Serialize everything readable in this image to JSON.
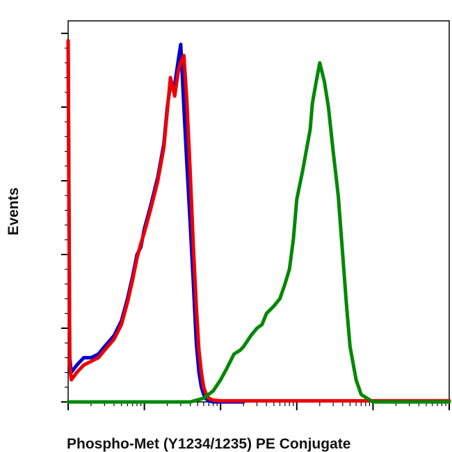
{
  "chart_data": {
    "type": "line",
    "title": "",
    "xlabel": "Phospho-Met (Y1234/1235) PE Conjugate",
    "ylabel": "Events",
    "x_scale": "log",
    "xlim": [
      1,
      100000
    ],
    "ylim": [
      0,
      100
    ],
    "y_tick_count": 5,
    "tick_labels_shown": false,
    "grid": false,
    "legend": "none",
    "series": [
      {
        "color": "#0000cc",
        "x": [
          1,
          1.05,
          1.1,
          1.3,
          1.6,
          2,
          2.5,
          3,
          4,
          5,
          6,
          7,
          8,
          9,
          10,
          12,
          15,
          18,
          20,
          22,
          25,
          28,
          30,
          33,
          36,
          40,
          44,
          48,
          52,
          56,
          60,
          65,
          70,
          80,
          100,
          150,
          200
        ],
        "values": [
          98,
          12,
          8,
          10,
          12,
          12,
          13,
          15,
          18,
          22,
          28,
          34,
          40,
          42,
          47,
          53,
          61,
          70,
          80,
          86,
          86,
          93,
          97,
          80,
          65,
          48,
          32,
          16,
          8,
          4,
          2,
          0.8,
          0.3,
          0,
          0,
          0,
          0
        ]
      },
      {
        "color": "#ee0000",
        "x": [
          1,
          1.05,
          1.1,
          1.3,
          1.6,
          2,
          2.5,
          3,
          4,
          5,
          6,
          7,
          8,
          9,
          10,
          12,
          15,
          18,
          20,
          22,
          25,
          28,
          30,
          33,
          36,
          40,
          44,
          48,
          52,
          56,
          60,
          65,
          70,
          80,
          100,
          150,
          200,
          300,
          1000,
          100000
        ],
        "values": [
          98,
          10,
          6,
          8,
          10,
          11,
          12,
          14,
          17,
          21,
          27,
          33,
          39,
          43,
          46,
          52,
          60,
          69,
          79,
          88,
          83,
          90,
          92,
          94,
          82,
          62,
          42,
          26,
          14,
          8,
          4,
          2,
          1,
          0.5,
          0.3,
          0.3,
          0.3,
          0.3,
          0.3,
          0.3
        ]
      },
      {
        "color": "#008800",
        "x": [
          1,
          40,
          60,
          80,
          100,
          120,
          150,
          180,
          200,
          250,
          300,
          350,
          400,
          500,
          600,
          700,
          800,
          900,
          1000,
          1200,
          1300,
          1500,
          1600,
          1800,
          2000,
          2300,
          2600,
          3000,
          3500,
          4000,
          4500,
          5000,
          6000,
          7000,
          10000,
          100000
        ],
        "values": [
          0,
          0,
          1,
          3,
          6,
          9,
          13,
          14,
          15,
          18,
          20,
          21,
          24,
          26,
          28,
          32,
          36,
          44,
          55,
          63,
          67,
          74,
          81,
          87,
          92,
          87,
          80,
          68,
          56,
          40,
          26,
          15,
          6,
          2,
          0,
          0
        ]
      }
    ]
  }
}
